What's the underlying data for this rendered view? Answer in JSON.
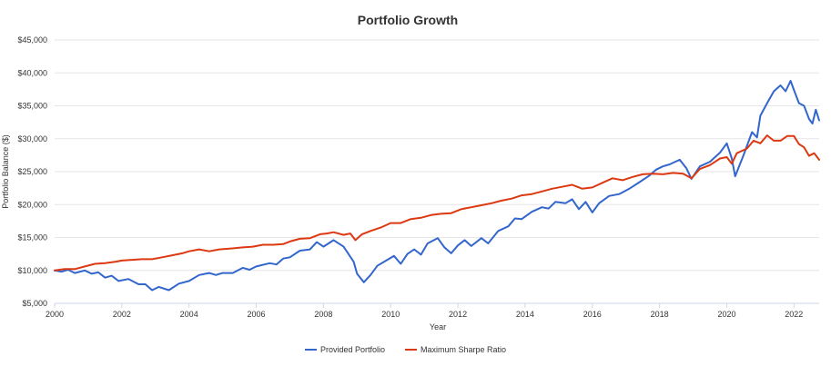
{
  "chart_data": {
    "type": "line",
    "title": "Portfolio Growth",
    "xlabel": "Year",
    "ylabel": "Portfolio Balance ($)",
    "xlim": [
      2000,
      2022.75
    ],
    "ylim": [
      5000,
      45000
    ],
    "x_ticks": [
      2000,
      2002,
      2004,
      2006,
      2008,
      2010,
      2012,
      2014,
      2016,
      2018,
      2020,
      2022
    ],
    "x_tick_labels": [
      "2000",
      "2002",
      "2004",
      "2006",
      "2008",
      "2010",
      "2012",
      "2014",
      "2016",
      "2018",
      "2020",
      "2022"
    ],
    "y_ticks": [
      5000,
      10000,
      15000,
      20000,
      25000,
      30000,
      35000,
      40000,
      45000
    ],
    "y_tick_labels": [
      "$5,000",
      "$10,000",
      "$15,000",
      "$20,000",
      "$25,000",
      "$30,000",
      "$35,000",
      "$40,000",
      "$45,000"
    ],
    "grid": true,
    "legend_position": "bottom",
    "series": [
      {
        "name": "Provided Portfolio",
        "color": "#3366cc",
        "points": [
          [
            2000.0,
            10000
          ],
          [
            2000.2,
            9800
          ],
          [
            2000.4,
            10100
          ],
          [
            2000.6,
            9600
          ],
          [
            2000.9,
            10000
          ],
          [
            2001.1,
            9500
          ],
          [
            2001.3,
            9700
          ],
          [
            2001.5,
            8900
          ],
          [
            2001.7,
            9200
          ],
          [
            2001.9,
            8400
          ],
          [
            2002.2,
            8700
          ],
          [
            2002.5,
            7900
          ],
          [
            2002.7,
            7900
          ],
          [
            2002.9,
            7000
          ],
          [
            2003.1,
            7500
          ],
          [
            2003.4,
            7000
          ],
          [
            2003.7,
            8000
          ],
          [
            2004.0,
            8400
          ],
          [
            2004.3,
            9300
          ],
          [
            2004.6,
            9600
          ],
          [
            2004.8,
            9300
          ],
          [
            2005.0,
            9600
          ],
          [
            2005.3,
            9600
          ],
          [
            2005.6,
            10400
          ],
          [
            2005.8,
            10100
          ],
          [
            2006.0,
            10600
          ],
          [
            2006.4,
            11100
          ],
          [
            2006.6,
            10900
          ],
          [
            2006.8,
            11800
          ],
          [
            2007.0,
            12000
          ],
          [
            2007.3,
            13000
          ],
          [
            2007.6,
            13200
          ],
          [
            2007.8,
            14300
          ],
          [
            2008.0,
            13600
          ],
          [
            2008.3,
            14600
          ],
          [
            2008.6,
            13600
          ],
          [
            2008.9,
            11300
          ],
          [
            2009.0,
            9500
          ],
          [
            2009.2,
            8200
          ],
          [
            2009.4,
            9300
          ],
          [
            2009.6,
            10700
          ],
          [
            2009.9,
            11600
          ],
          [
            2010.1,
            12200
          ],
          [
            2010.3,
            11000
          ],
          [
            2010.5,
            12500
          ],
          [
            2010.7,
            13200
          ],
          [
            2010.9,
            12400
          ],
          [
            2011.1,
            14100
          ],
          [
            2011.4,
            14900
          ],
          [
            2011.6,
            13500
          ],
          [
            2011.8,
            12600
          ],
          [
            2012.0,
            13800
          ],
          [
            2012.2,
            14600
          ],
          [
            2012.4,
            13700
          ],
          [
            2012.7,
            14900
          ],
          [
            2012.9,
            14100
          ],
          [
            2013.2,
            16000
          ],
          [
            2013.5,
            16700
          ],
          [
            2013.7,
            17900
          ],
          [
            2013.9,
            17800
          ],
          [
            2014.2,
            18900
          ],
          [
            2014.5,
            19600
          ],
          [
            2014.7,
            19400
          ],
          [
            2014.9,
            20400
          ],
          [
            2015.2,
            20200
          ],
          [
            2015.4,
            20800
          ],
          [
            2015.6,
            19300
          ],
          [
            2015.8,
            20400
          ],
          [
            2016.0,
            18800
          ],
          [
            2016.2,
            20200
          ],
          [
            2016.5,
            21300
          ],
          [
            2016.8,
            21600
          ],
          [
            2017.1,
            22400
          ],
          [
            2017.4,
            23400
          ],
          [
            2017.7,
            24400
          ],
          [
            2017.9,
            25300
          ],
          [
            2018.1,
            25800
          ],
          [
            2018.3,
            26100
          ],
          [
            2018.6,
            26800
          ],
          [
            2018.8,
            25500
          ],
          [
            2018.95,
            23900
          ],
          [
            2019.2,
            25800
          ],
          [
            2019.5,
            26500
          ],
          [
            2019.8,
            27900
          ],
          [
            2020.0,
            29300
          ],
          [
            2020.15,
            27000
          ],
          [
            2020.25,
            24300
          ],
          [
            2020.5,
            27500
          ],
          [
            2020.75,
            31000
          ],
          [
            2020.9,
            30200
          ],
          [
            2021.0,
            33500
          ],
          [
            2021.2,
            35400
          ],
          [
            2021.4,
            37200
          ],
          [
            2021.6,
            38100
          ],
          [
            2021.75,
            37200
          ],
          [
            2021.9,
            38800
          ],
          [
            2022.0,
            37400
          ],
          [
            2022.15,
            35400
          ],
          [
            2022.3,
            35000
          ],
          [
            2022.45,
            33000
          ],
          [
            2022.55,
            32300
          ],
          [
            2022.65,
            34400
          ],
          [
            2022.75,
            32800
          ]
        ]
      },
      {
        "name": "Maximum Sharpe Ratio",
        "color": "#dc3912",
        "points": [
          [
            2000.0,
            10000
          ],
          [
            2000.3,
            10200
          ],
          [
            2000.6,
            10200
          ],
          [
            2000.9,
            10600
          ],
          [
            2001.2,
            11000
          ],
          [
            2001.5,
            11100
          ],
          [
            2001.8,
            11300
          ],
          [
            2002.0,
            11500
          ],
          [
            2002.3,
            11600
          ],
          [
            2002.6,
            11700
          ],
          [
            2002.9,
            11700
          ],
          [
            2003.2,
            12000
          ],
          [
            2003.5,
            12300
          ],
          [
            2003.8,
            12600
          ],
          [
            2004.0,
            12900
          ],
          [
            2004.3,
            13200
          ],
          [
            2004.6,
            12900
          ],
          [
            2004.9,
            13200
          ],
          [
            2005.2,
            13300
          ],
          [
            2005.6,
            13500
          ],
          [
            2005.9,
            13600
          ],
          [
            2006.2,
            13900
          ],
          [
            2006.5,
            13900
          ],
          [
            2006.8,
            14000
          ],
          [
            2007.0,
            14400
          ],
          [
            2007.3,
            14800
          ],
          [
            2007.6,
            14900
          ],
          [
            2007.9,
            15500
          ],
          [
            2008.1,
            15600
          ],
          [
            2008.3,
            15800
          ],
          [
            2008.6,
            15400
          ],
          [
            2008.8,
            15600
          ],
          [
            2008.95,
            14600
          ],
          [
            2009.15,
            15500
          ],
          [
            2009.4,
            16000
          ],
          [
            2009.7,
            16500
          ],
          [
            2010.0,
            17200
          ],
          [
            2010.3,
            17200
          ],
          [
            2010.6,
            17800
          ],
          [
            2010.9,
            18000
          ],
          [
            2011.2,
            18400
          ],
          [
            2011.5,
            18600
          ],
          [
            2011.8,
            18700
          ],
          [
            2012.1,
            19300
          ],
          [
            2012.4,
            19600
          ],
          [
            2012.7,
            19900
          ],
          [
            2013.0,
            20200
          ],
          [
            2013.3,
            20600
          ],
          [
            2013.6,
            20900
          ],
          [
            2013.9,
            21400
          ],
          [
            2014.2,
            21600
          ],
          [
            2014.5,
            22000
          ],
          [
            2014.8,
            22400
          ],
          [
            2015.1,
            22700
          ],
          [
            2015.4,
            23000
          ],
          [
            2015.7,
            22400
          ],
          [
            2016.0,
            22600
          ],
          [
            2016.3,
            23300
          ],
          [
            2016.6,
            24000
          ],
          [
            2016.9,
            23700
          ],
          [
            2017.2,
            24200
          ],
          [
            2017.5,
            24600
          ],
          [
            2017.8,
            24700
          ],
          [
            2018.1,
            24600
          ],
          [
            2018.4,
            24800
          ],
          [
            2018.7,
            24700
          ],
          [
            2018.95,
            24000
          ],
          [
            2019.2,
            25400
          ],
          [
            2019.5,
            26000
          ],
          [
            2019.8,
            27000
          ],
          [
            2020.0,
            27200
          ],
          [
            2020.15,
            26200
          ],
          [
            2020.3,
            27800
          ],
          [
            2020.6,
            28500
          ],
          [
            2020.8,
            29700
          ],
          [
            2021.0,
            29300
          ],
          [
            2021.2,
            30500
          ],
          [
            2021.4,
            29700
          ],
          [
            2021.6,
            29700
          ],
          [
            2021.8,
            30400
          ],
          [
            2022.0,
            30400
          ],
          [
            2022.15,
            29200
          ],
          [
            2022.3,
            28700
          ],
          [
            2022.45,
            27400
          ],
          [
            2022.6,
            27800
          ],
          [
            2022.75,
            26800
          ]
        ]
      }
    ]
  }
}
